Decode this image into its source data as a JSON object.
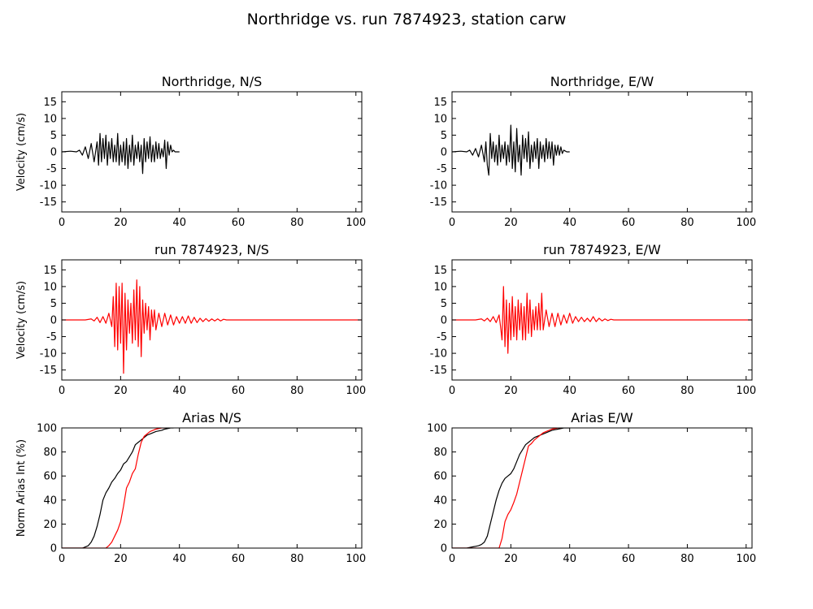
{
  "figure": {
    "title": "Northridge vs. run 7874923, station carw"
  },
  "chart_data": [
    {
      "type": "line",
      "title": "Northridge, N/S",
      "ylabel": "Velocity (cm/s)",
      "xlabel": "",
      "xlim": [
        0,
        102
      ],
      "ylim": [
        -18,
        18
      ],
      "xticks": [
        "0",
        "20",
        "40",
        "60",
        "80",
        "100"
      ],
      "yticks": [
        "15",
        "10",
        "5",
        "0",
        "-5",
        "-10",
        "-15"
      ],
      "series": [
        {
          "color": "#000000",
          "x": [
            0,
            3,
            5,
            6,
            7,
            8,
            9,
            10,
            11,
            12,
            12.5,
            13,
            13.5,
            14,
            14.5,
            15,
            15.5,
            16,
            16.5,
            17,
            17.5,
            18,
            18.5,
            19,
            19.5,
            20,
            20.5,
            21,
            21.5,
            22,
            22.5,
            23,
            23.5,
            24,
            24.5,
            25,
            25.5,
            26,
            26.5,
            27,
            27.5,
            28,
            28.5,
            29,
            29.5,
            30,
            30.5,
            31,
            31.5,
            32,
            32.5,
            33,
            33.5,
            34,
            34.5,
            35,
            35.5,
            36,
            36.5,
            37,
            37.5,
            38,
            38.5,
            39,
            40
          ],
          "y": [
            0,
            0.2,
            0,
            0.5,
            -1,
            1.5,
            -2,
            2.5,
            -3,
            3,
            -4,
            5.5,
            -3,
            4,
            -2,
            5,
            -4,
            3,
            -2,
            4,
            -3,
            2,
            -3,
            5.5,
            -4,
            2,
            -3,
            3,
            -4,
            4,
            -5,
            2,
            -3,
            5,
            -4,
            2,
            -2,
            3,
            -3,
            2,
            -6.5,
            4,
            -3,
            3,
            -2,
            4.5,
            -3,
            2,
            -3,
            3,
            -2,
            2.5,
            -2,
            1,
            -1.5,
            3.5,
            -5,
            3,
            -1,
            2,
            0,
            0.5,
            0,
            0,
            0
          ]
        }
      ]
    },
    {
      "type": "line",
      "title": "Northridge, E/W",
      "ylabel": "",
      "xlabel": "",
      "xlim": [
        0,
        102
      ],
      "ylim": [
        -18,
        18
      ],
      "xticks": [
        "0",
        "20",
        "40",
        "60",
        "80",
        "100"
      ],
      "yticks": [
        "15",
        "10",
        "5",
        "0",
        "-5",
        "-10",
        "-15"
      ],
      "series": [
        {
          "color": "#000000",
          "x": [
            0,
            3,
            5,
            6,
            7,
            8,
            9,
            10,
            11,
            11.5,
            12,
            12.5,
            13,
            13.5,
            14,
            14.5,
            15,
            15.5,
            16,
            16.5,
            17,
            17.5,
            18,
            18.5,
            19,
            19.5,
            20,
            20.5,
            21,
            21.5,
            22,
            22.5,
            23,
            23.5,
            24,
            24.5,
            25,
            25.5,
            26,
            26.5,
            27,
            27.5,
            28,
            28.5,
            29,
            29.5,
            30,
            30.5,
            31,
            31.5,
            32,
            32.5,
            33,
            33.5,
            34,
            34.5,
            35,
            35.5,
            36,
            36.5,
            37,
            37.5,
            38,
            39,
            40
          ],
          "y": [
            0,
            0.2,
            0,
            0.5,
            -1,
            1,
            -1.5,
            2,
            -3,
            3,
            -4,
            -7,
            5.5,
            -2,
            3,
            -3,
            2,
            -4,
            5,
            -3,
            2,
            -2,
            3,
            -4,
            2,
            -3,
            8,
            -5,
            3,
            -6,
            7,
            -3,
            2,
            -7,
            5,
            -2,
            4,
            -3,
            6,
            -5,
            2,
            -3,
            3,
            -2,
            4,
            -5,
            3,
            -2,
            2,
            -3,
            4,
            -2,
            3,
            -2,
            3,
            -4,
            2,
            -1,
            2,
            -1,
            1.5,
            -0.5,
            0.5,
            0,
            0
          ]
        }
      ]
    },
    {
      "type": "line",
      "title": "run 7874923, N/S",
      "ylabel": "Velocity (cm/s)",
      "xlabel": "",
      "xlim": [
        0,
        102
      ],
      "ylim": [
        -18,
        18
      ],
      "xticks": [
        "0",
        "20",
        "40",
        "60",
        "80",
        "100"
      ],
      "yticks": [
        "15",
        "10",
        "5",
        "0",
        "-5",
        "-10",
        "-15"
      ],
      "series": [
        {
          "color": "#ff0000",
          "x": [
            0,
            8,
            10,
            11,
            12,
            13,
            14,
            15,
            16,
            17,
            17.5,
            18,
            18.5,
            19,
            19.5,
            20,
            20.5,
            21,
            21.5,
            22,
            22.5,
            23,
            23.5,
            24,
            24.5,
            25,
            25.5,
            26,
            26.5,
            27,
            27.5,
            28,
            28.5,
            29,
            29.5,
            30,
            30.5,
            31,
            31.5,
            32,
            33,
            34,
            35,
            36,
            37,
            38,
            39,
            40,
            41,
            42,
            43,
            44,
            45,
            46,
            47,
            48,
            49,
            50,
            51,
            52,
            53,
            54,
            55,
            56,
            60,
            70,
            80,
            90,
            102
          ],
          "y": [
            0,
            0,
            0.3,
            -0.3,
            0.8,
            -0.8,
            1,
            -1,
            2,
            -2,
            7,
            -8,
            11,
            -9,
            10,
            -7,
            11,
            -16,
            8,
            -9,
            6,
            -4,
            5,
            -7,
            9,
            -6,
            12,
            -8,
            10,
            -11,
            6,
            -4,
            5,
            -3,
            4,
            -6,
            3,
            -2,
            3,
            -3,
            2,
            -2,
            2,
            -1.5,
            1.5,
            -1.5,
            1,
            -1,
            1,
            -1,
            1.2,
            -1,
            0.8,
            -0.8,
            0.5,
            -0.5,
            0.4,
            -0.4,
            0.3,
            -0.3,
            0.3,
            -0.3,
            0.2,
            0,
            0,
            0,
            0,
            0,
            0
          ]
        }
      ]
    },
    {
      "type": "line",
      "title": "run 7874923, E/W",
      "ylabel": "",
      "xlabel": "",
      "xlim": [
        0,
        102
      ],
      "ylim": [
        -18,
        18
      ],
      "xticks": [
        "0",
        "20",
        "40",
        "60",
        "80",
        "100"
      ],
      "yticks": [
        "15",
        "10",
        "5",
        "0",
        "-5",
        "-10",
        "-15"
      ],
      "series": [
        {
          "color": "#ff0000",
          "x": [
            0,
            8,
            10,
            11,
            12,
            13,
            14,
            15,
            16,
            16.5,
            17,
            17.5,
            18,
            18.5,
            19,
            19.5,
            20,
            20.5,
            21,
            21.5,
            22,
            22.5,
            23,
            23.5,
            24,
            24.5,
            25,
            25.5,
            26,
            26.5,
            27,
            27.5,
            28,
            28.5,
            29,
            29.5,
            30,
            30.5,
            31,
            32,
            33,
            34,
            35,
            36,
            37,
            38,
            39,
            40,
            41,
            42,
            43,
            44,
            45,
            46,
            47,
            48,
            49,
            50,
            51,
            52,
            53,
            54,
            55,
            56,
            60,
            70,
            80,
            90,
            102
          ],
          "y": [
            0,
            0,
            0.3,
            -0.3,
            0.5,
            -0.5,
            1,
            -0.8,
            1.5,
            -2,
            -6,
            10,
            -8,
            6,
            -10,
            5,
            -6,
            7,
            -5,
            4,
            -6,
            6,
            -3,
            5,
            -6,
            4,
            -6,
            8,
            -4,
            6,
            -5,
            3,
            -3,
            4,
            -3,
            5,
            -3,
            8,
            -3,
            3,
            -2,
            2,
            -2,
            2,
            -1.5,
            1.5,
            -1,
            2,
            -1,
            1,
            -0.5,
            0.8,
            -0.5,
            0.5,
            -0.5,
            1,
            -0.5,
            0.5,
            -0.3,
            0.3,
            -0.2,
            0.2,
            0,
            0,
            0,
            0,
            0,
            0,
            0
          ]
        }
      ]
    },
    {
      "type": "line",
      "title": "Arias N/S",
      "ylabel": "Norm Arias Int (%)",
      "xlabel": "",
      "xlim": [
        0,
        102
      ],
      "ylim": [
        0,
        100
      ],
      "xticks": [
        "0",
        "20",
        "40",
        "60",
        "80",
        "100"
      ],
      "yticks": [
        "100",
        "80",
        "60",
        "40",
        "20",
        "0"
      ],
      "series": [
        {
          "color": "#000000",
          "x": [
            0,
            7,
            8,
            9,
            10,
            11,
            12,
            13,
            14,
            15,
            16,
            17,
            18,
            19,
            20,
            21,
            22,
            23,
            24,
            25,
            26,
            27,
            28,
            29,
            30,
            31,
            32,
            33,
            34,
            35,
            36,
            37,
            38
          ],
          "y": [
            0,
            0,
            1,
            2,
            5,
            10,
            18,
            28,
            40,
            46,
            50,
            55,
            58,
            62,
            65,
            70,
            72,
            76,
            80,
            86,
            88,
            90,
            92,
            94,
            95,
            96,
            97,
            97.5,
            98,
            99,
            99.5,
            100,
            100
          ]
        },
        {
          "color": "#ff0000",
          "x": [
            0,
            15,
            16,
            17,
            18,
            19,
            20,
            21,
            22,
            23,
            24,
            25,
            26,
            27,
            28,
            29,
            30,
            31,
            32,
            33,
            34,
            35
          ],
          "y": [
            0,
            0,
            2,
            5,
            10,
            15,
            22,
            35,
            50,
            55,
            62,
            66,
            78,
            88,
            93,
            95,
            97,
            98,
            99,
            99.5,
            100,
            100
          ]
        }
      ]
    },
    {
      "type": "line",
      "title": "Arias E/W",
      "ylabel": "",
      "xlabel": "",
      "xlim": [
        0,
        102
      ],
      "ylim": [
        0,
        100
      ],
      "xticks": [
        "0",
        "20",
        "40",
        "60",
        "80",
        "100"
      ],
      "yticks": [
        "100",
        "80",
        "60",
        "40",
        "20",
        "0"
      ],
      "series": [
        {
          "color": "#000000",
          "x": [
            0,
            5,
            6,
            7,
            8,
            9,
            10,
            11,
            12,
            13,
            14,
            15,
            16,
            17,
            18,
            19,
            20,
            21,
            22,
            23,
            24,
            25,
            26,
            27,
            28,
            29,
            30,
            31,
            32,
            33,
            34,
            35,
            36,
            37,
            38,
            39,
            40
          ],
          "y": [
            0,
            0,
            0.5,
            1,
            1.5,
            2,
            3,
            5,
            10,
            20,
            30,
            40,
            48,
            54,
            58,
            60,
            62,
            66,
            72,
            78,
            82,
            86,
            88,
            90,
            92,
            93,
            94,
            95,
            96,
            97,
            98,
            98.5,
            99,
            99.5,
            100,
            100,
            100
          ]
        },
        {
          "color": "#ff0000",
          "x": [
            0,
            16,
            17,
            18,
            19,
            20,
            21,
            22,
            23,
            24,
            25,
            26,
            27,
            28,
            29,
            30,
            31,
            32,
            33,
            34,
            35,
            36,
            37
          ],
          "y": [
            0,
            0,
            8,
            22,
            28,
            32,
            38,
            45,
            55,
            65,
            75,
            85,
            87,
            90,
            92,
            94,
            96,
            97,
            98,
            99,
            99.5,
            100,
            100
          ]
        }
      ]
    }
  ]
}
